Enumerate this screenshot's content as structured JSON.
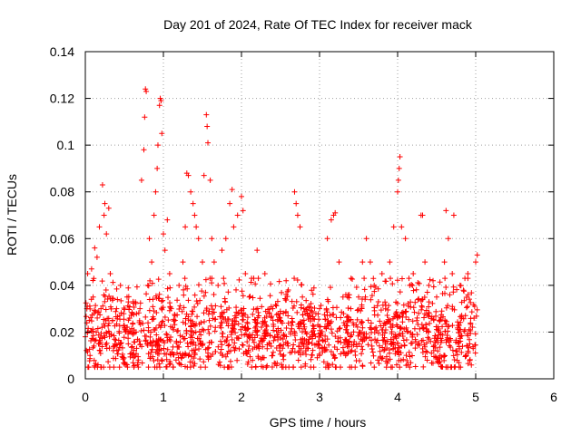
{
  "chart_data": {
    "type": "scatter",
    "title": "Day 201 of 2024, Rate Of TEC Index for receiver mack",
    "xlabel": "GPS time / hours",
    "ylabel": "ROTI / TECUs",
    "xlim": [
      0,
      6
    ],
    "ylim": [
      0,
      0.14
    ],
    "xticks": [
      0,
      1,
      2,
      3,
      4,
      5,
      6
    ],
    "yticks": [
      0,
      0.02,
      0.04,
      0.06,
      0.08,
      0.1,
      0.12,
      0.14
    ],
    "xtick_labels": [
      "0",
      "1",
      "2",
      "3",
      "4",
      "5",
      "6"
    ],
    "ytick_labels": [
      "0",
      "0.02",
      "0.04",
      "0.06",
      "0.08",
      "0.1",
      "0.12",
      "0.14"
    ],
    "grid": true,
    "marker": "plus",
    "color": "#ff0000",
    "data_x_range": [
      0,
      5.02
    ],
    "series": [
      {
        "name": "ROTI",
        "points": [
          [
            0.0,
            0.018
          ],
          [
            0.02,
            0.03
          ],
          [
            0.03,
            0.045
          ],
          [
            0.05,
            0.025
          ],
          [
            0.06,
            0.01
          ],
          [
            0.08,
            0.047
          ],
          [
            0.1,
            0.035
          ],
          [
            0.12,
            0.056
          ],
          [
            0.14,
            0.02
          ],
          [
            0.15,
            0.052
          ],
          [
            0.18,
            0.065
          ],
          [
            0.2,
            0.03
          ],
          [
            0.22,
            0.083
          ],
          [
            0.24,
            0.07
          ],
          [
            0.25,
            0.075
          ],
          [
            0.27,
            0.062
          ],
          [
            0.3,
            0.073
          ],
          [
            0.32,
            0.045
          ],
          [
            0.35,
            0.025
          ],
          [
            0.38,
            0.015
          ],
          [
            0.4,
            0.03
          ],
          [
            0.45,
            0.04
          ],
          [
            0.5,
            0.022
          ],
          [
            0.55,
            0.015
          ],
          [
            0.6,
            0.028
          ],
          [
            0.65,
            0.02
          ],
          [
            0.7,
            0.03
          ],
          [
            0.72,
            0.085
          ],
          [
            0.75,
            0.098
          ],
          [
            0.76,
            0.112
          ],
          [
            0.77,
            0.124
          ],
          [
            0.78,
            0.123
          ],
          [
            0.8,
            0.04
          ],
          [
            0.82,
            0.06
          ],
          [
            0.85,
            0.05
          ],
          [
            0.88,
            0.07
          ],
          [
            0.9,
            0.08
          ],
          [
            0.92,
            0.09
          ],
          [
            0.93,
            0.1
          ],
          [
            0.95,
            0.117
          ],
          [
            0.96,
            0.12
          ],
          [
            0.97,
            0.119
          ],
          [
            0.98,
            0.105
          ],
          [
            1.0,
            0.062
          ],
          [
            1.02,
            0.055
          ],
          [
            1.05,
            0.068
          ],
          [
            1.08,
            0.045
          ],
          [
            1.1,
            0.03
          ],
          [
            1.15,
            0.025
          ],
          [
            1.2,
            0.04
          ],
          [
            1.25,
            0.05
          ],
          [
            1.28,
            0.065
          ],
          [
            1.3,
            0.088
          ],
          [
            1.32,
            0.087
          ],
          [
            1.35,
            0.08
          ],
          [
            1.38,
            0.075
          ],
          [
            1.4,
            0.07
          ],
          [
            1.42,
            0.065
          ],
          [
            1.45,
            0.06
          ],
          [
            1.5,
            0.05
          ],
          [
            1.52,
            0.087
          ],
          [
            1.55,
            0.113
          ],
          [
            1.56,
            0.108
          ],
          [
            1.57,
            0.101
          ],
          [
            1.6,
            0.085
          ],
          [
            1.62,
            0.06
          ],
          [
            1.65,
            0.05
          ],
          [
            1.7,
            0.04
          ],
          [
            1.75,
            0.055
          ],
          [
            1.8,
            0.06
          ],
          [
            1.85,
            0.075
          ],
          [
            1.88,
            0.081
          ],
          [
            1.9,
            0.065
          ],
          [
            1.95,
            0.07
          ],
          [
            2.0,
            0.078
          ],
          [
            2.02,
            0.072
          ],
          [
            2.05,
            0.045
          ],
          [
            2.1,
            0.035
          ],
          [
            2.2,
            0.055
          ],
          [
            2.3,
            0.045
          ],
          [
            2.4,
            0.03
          ],
          [
            2.5,
            0.025
          ],
          [
            2.6,
            0.038
          ],
          [
            2.68,
            0.08
          ],
          [
            2.7,
            0.075
          ],
          [
            2.72,
            0.07
          ],
          [
            2.75,
            0.065
          ],
          [
            2.8,
            0.03
          ],
          [
            2.9,
            0.02
          ],
          [
            3.0,
            0.03
          ],
          [
            3.1,
            0.06
          ],
          [
            3.15,
            0.068
          ],
          [
            3.18,
            0.07
          ],
          [
            3.2,
            0.071
          ],
          [
            3.25,
            0.05
          ],
          [
            3.3,
            0.035
          ],
          [
            3.4,
            0.03
          ],
          [
            3.5,
            0.035
          ],
          [
            3.55,
            0.05
          ],
          [
            3.6,
            0.06
          ],
          [
            3.65,
            0.05
          ],
          [
            3.7,
            0.04
          ],
          [
            3.8,
            0.045
          ],
          [
            3.9,
            0.05
          ],
          [
            3.95,
            0.065
          ],
          [
            4.0,
            0.08
          ],
          [
            4.01,
            0.085
          ],
          [
            4.02,
            0.09
          ],
          [
            4.03,
            0.095
          ],
          [
            4.05,
            0.065
          ],
          [
            4.1,
            0.06
          ],
          [
            4.2,
            0.045
          ],
          [
            4.3,
            0.07
          ],
          [
            4.32,
            0.07
          ],
          [
            4.35,
            0.05
          ],
          [
            4.4,
            0.04
          ],
          [
            4.5,
            0.035
          ],
          [
            4.6,
            0.05
          ],
          [
            4.62,
            0.072
          ],
          [
            4.65,
            0.06
          ],
          [
            4.7,
            0.045
          ],
          [
            4.72,
            0.07
          ],
          [
            4.8,
            0.04
          ],
          [
            4.9,
            0.045
          ],
          [
            5.0,
            0.05
          ],
          [
            5.02,
            0.053
          ]
        ]
      }
    ],
    "baseline_band": {
      "y_min": 0.005,
      "y_max": 0.035,
      "typical": 0.018
    }
  }
}
